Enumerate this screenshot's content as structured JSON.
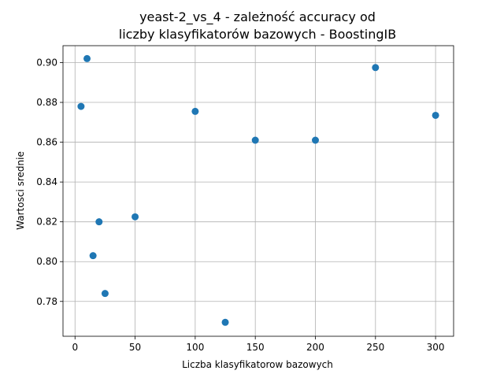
{
  "chart_data": {
    "type": "scatter",
    "title_lines": [
      "yeast-2_vs_4 - zależność accuracy od",
      "liczby klasyfikatorów bazowych - BoostingIB"
    ],
    "xlabel": "Liczba klasyfikatorow bazowych",
    "ylabel": "Wartosci srednie",
    "xlim": [
      -10,
      315
    ],
    "ylim": [
      0.7625,
      0.9085
    ],
    "xticks": [
      0,
      50,
      100,
      150,
      200,
      250,
      300
    ],
    "xtick_labels": [
      "0",
      "50",
      "100",
      "150",
      "200",
      "250",
      "300"
    ],
    "yticks": [
      0.78,
      0.8,
      0.82,
      0.84,
      0.86,
      0.88,
      0.9
    ],
    "ytick_labels": [
      "0.78",
      "0.80",
      "0.82",
      "0.84",
      "0.86",
      "0.88",
      "0.90"
    ],
    "grid": true,
    "marker_color": "#1f77b4",
    "points": [
      {
        "x": 5,
        "y": 0.878
      },
      {
        "x": 10,
        "y": 0.902
      },
      {
        "x": 15,
        "y": 0.803
      },
      {
        "x": 20,
        "y": 0.82
      },
      {
        "x": 25,
        "y": 0.784
      },
      {
        "x": 50,
        "y": 0.8225
      },
      {
        "x": 100,
        "y": 0.8755
      },
      {
        "x": 125,
        "y": 0.7695
      },
      {
        "x": 150,
        "y": 0.861
      },
      {
        "x": 200,
        "y": 0.861
      },
      {
        "x": 250,
        "y": 0.8975
      },
      {
        "x": 300,
        "y": 0.8735
      }
    ]
  }
}
